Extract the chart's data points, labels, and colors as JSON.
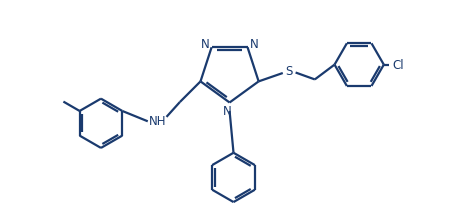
{
  "bg_color": "#ffffff",
  "line_color": "#1a3a6e",
  "line_width": 1.6,
  "font_size": 8.5,
  "fig_width": 4.69,
  "fig_height": 2.07,
  "dpi": 100,
  "xlim": [
    0,
    9.5
  ],
  "ylim": [
    0,
    4.2
  ]
}
